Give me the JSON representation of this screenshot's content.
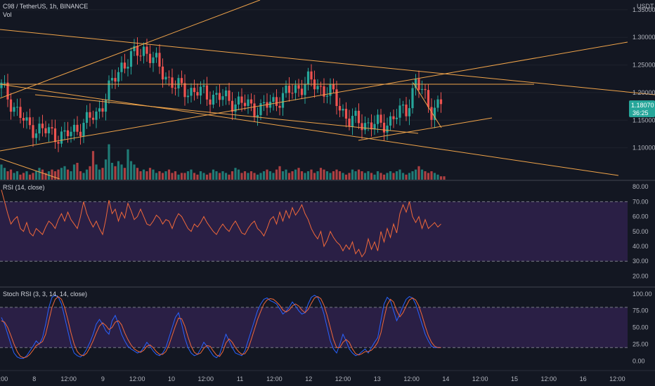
{
  "header": {
    "symbol_line": "C98 / TetherUS, 1h, BINANCE",
    "vol_label": "Vol",
    "currency": "USDT"
  },
  "price_badge": {
    "price": "1.18070",
    "countdown": "36:25",
    "color": "#26a69a"
  },
  "colors": {
    "background": "#131722",
    "up": "#26a69a",
    "down": "#ef5350",
    "vol_up": "#26a69a",
    "vol_down": "#ef5350",
    "trendline": "#f0a44a",
    "rsi_line": "#f0683a",
    "stoch_k": "#2962ff",
    "stoch_d": "#f0683a",
    "osc_band": "#2a1f45"
  },
  "x_axis_ticks": [
    "12:00",
    "8",
    "12:00",
    "9",
    "12:00",
    "10",
    "12:00",
    "11",
    "12:00",
    "12",
    "12:00",
    "13",
    "12:00",
    "14",
    "12:00",
    "15",
    "12:00",
    "16",
    "12:00"
  ],
  "chart_data": [
    {
      "type": "candlestick",
      "title": "C98 / TetherUS, 1h, BINANCE",
      "ylabel": "USDT",
      "ylim": [
        1.05,
        1.36
      ],
      "y_ticks": [
        "1.35000",
        "1.30000",
        "1.25000",
        "1.20000",
        "1.15000",
        "1.10000"
      ],
      "series": [
        {
          "name": "Vol",
          "values": [
            0.9,
            0.7,
            0.5,
            0.6,
            0.4,
            0.5,
            0.3,
            0.4,
            0.5,
            0.3,
            0.4,
            0.5,
            0.7,
            0.6,
            0.4,
            0.5,
            0.6,
            0.5,
            0.6,
            0.7,
            0.8,
            0.6,
            0.5,
            0.9,
            1.0,
            0.5,
            0.4,
            0.6,
            0.8,
            1.7,
            0.9,
            0.6,
            0.7,
            1.2,
            2.1,
            1.0,
            0.8,
            1.1,
            0.9,
            0.7,
            1.8,
            1.1,
            0.9,
            0.7,
            0.5,
            0.6,
            0.5,
            0.7,
            0.6,
            0.4,
            0.5,
            0.4,
            0.5,
            0.6,
            0.4,
            0.5,
            0.3,
            0.4,
            0.4,
            0.5,
            0.6,
            0.4,
            0.3,
            0.5,
            0.4,
            0.3,
            0.4,
            0.6,
            0.5,
            0.4,
            0.5,
            0.4,
            0.3,
            0.5,
            0.7,
            0.6,
            0.4,
            0.5,
            0.4,
            0.5,
            0.4,
            0.3,
            0.4,
            0.5,
            0.6,
            0.5,
            0.4,
            0.6,
            0.8,
            0.5,
            0.6,
            0.4,
            0.5,
            0.6,
            0.7,
            0.5,
            0.4,
            0.5,
            0.6,
            0.4,
            0.5,
            0.7,
            0.6,
            0.5,
            0.4,
            0.5,
            0.6,
            0.5,
            0.4,
            0.3,
            0.4,
            0.6,
            0.5,
            0.6,
            0.5,
            0.4,
            0.5,
            0.4,
            0.3,
            0.5,
            0.4,
            0.3,
            0.4,
            0.5,
            0.4,
            0.5,
            0.6,
            0.4,
            0.3,
            0.4,
            0.5,
            0.6,
            0.8,
            0.6,
            0.5,
            0.4,
            0.5,
            0.4,
            0.3,
            0.2,
            0.2
          ]
        }
      ]
    },
    {
      "type": "line",
      "title": "RSI (14, close)",
      "ylim": [
        15,
        82
      ],
      "y_ticks": [
        "80.00",
        "70.00",
        "60.00",
        "50.00",
        "40.00",
        "30.00",
        "20.00"
      ],
      "bands": [
        30,
        70
      ],
      "series": [
        {
          "name": "RSI",
          "values": [
            78,
            70,
            62,
            55,
            58,
            60,
            52,
            50,
            56,
            49,
            47,
            52,
            50,
            48,
            53,
            57,
            55,
            52,
            58,
            62,
            57,
            63,
            58,
            55,
            52,
            60,
            70,
            62,
            57,
            53,
            57,
            52,
            48,
            58,
            71,
            62,
            65,
            57,
            63,
            59,
            69,
            64,
            58,
            60,
            65,
            60,
            55,
            54,
            57,
            61,
            59,
            55,
            58,
            57,
            52,
            58,
            62,
            60,
            56,
            52,
            50,
            55,
            53,
            56,
            60,
            56,
            53,
            50,
            48,
            52,
            55,
            52,
            50,
            54,
            57,
            53,
            49,
            48,
            52,
            55,
            57,
            52,
            50,
            47,
            52,
            58,
            60,
            55,
            63,
            57,
            64,
            59,
            66,
            61,
            64,
            68,
            62,
            58,
            52,
            48,
            45,
            50,
            40,
            44,
            50,
            46,
            43,
            41,
            37,
            41,
            38,
            43,
            35,
            38,
            33,
            36,
            45,
            38,
            43,
            37,
            50,
            43,
            52,
            46,
            55,
            49,
            62,
            68,
            63,
            70,
            60,
            56,
            60,
            52,
            58,
            52,
            54,
            56,
            53,
            55
          ]
        }
      ]
    },
    {
      "type": "line",
      "title": "Stoch RSI (3, 3, 14, 14, close)",
      "ylim": [
        -10,
        105
      ],
      "y_ticks": [
        "100.00",
        "75.00",
        "50.00",
        "25.00",
        "0.00"
      ],
      "bands": [
        20,
        80
      ],
      "series": [
        {
          "name": "K",
          "values": [
            65,
            55,
            40,
            25,
            12,
            6,
            4,
            4,
            8,
            15,
            22,
            30,
            25,
            35,
            55,
            80,
            95,
            98,
            95,
            85,
            65,
            45,
            25,
            12,
            8,
            6,
            10,
            18,
            28,
            40,
            55,
            62,
            55,
            45,
            40,
            60,
            68,
            55,
            40,
            30,
            22,
            18,
            15,
            12,
            14,
            20,
            28,
            22,
            15,
            10,
            8,
            12,
            20,
            35,
            50,
            65,
            72,
            55,
            35,
            20,
            12,
            8,
            10,
            18,
            28,
            22,
            15,
            8,
            5,
            10,
            25,
            40,
            30,
            20,
            12,
            10,
            8,
            15,
            30,
            45,
            60,
            75,
            85,
            92,
            94,
            90,
            88,
            85,
            78,
            70,
            74,
            80,
            88,
            82,
            75,
            70,
            72,
            85,
            95,
            98,
            95,
            85,
            70,
            50,
            30,
            18,
            12,
            25,
            40,
            30,
            18,
            12,
            8,
            10,
            14,
            18,
            12,
            20,
            28,
            35,
            60,
            85,
            95,
            90,
            75,
            60,
            70,
            82,
            92,
            96,
            94,
            85,
            70,
            55,
            40,
            30,
            22,
            20,
            20,
            20
          ]
        },
        {
          "name": "D",
          "values": [
            60,
            58,
            50,
            38,
            25,
            14,
            7,
            5,
            6,
            10,
            16,
            23,
            26,
            29,
            40,
            60,
            80,
            92,
            96,
            92,
            80,
            62,
            42,
            25,
            14,
            9,
            8,
            12,
            20,
            30,
            42,
            52,
            57,
            53,
            47,
            50,
            58,
            60,
            54,
            42,
            32,
            24,
            18,
            15,
            13,
            16,
            22,
            24,
            20,
            14,
            10,
            10,
            14,
            24,
            38,
            52,
            64,
            63,
            52,
            36,
            22,
            13,
            10,
            12,
            19,
            23,
            22,
            15,
            9,
            7,
            14,
            27,
            33,
            28,
            20,
            14,
            10,
            11,
            18,
            32,
            47,
            62,
            74,
            85,
            91,
            93,
            92,
            88,
            83,
            76,
            73,
            76,
            82,
            85,
            82,
            76,
            72,
            77,
            86,
            94,
            96,
            93,
            83,
            68,
            50,
            32,
            20,
            20,
            28,
            32,
            28,
            18,
            11,
            9,
            11,
            14,
            14,
            16,
            21,
            28,
            42,
            64,
            84,
            92,
            88,
            75,
            66,
            72,
            82,
            91,
            94,
            91,
            82,
            68,
            52,
            38,
            28,
            22,
            20,
            20
          ]
        }
      ]
    }
  ]
}
